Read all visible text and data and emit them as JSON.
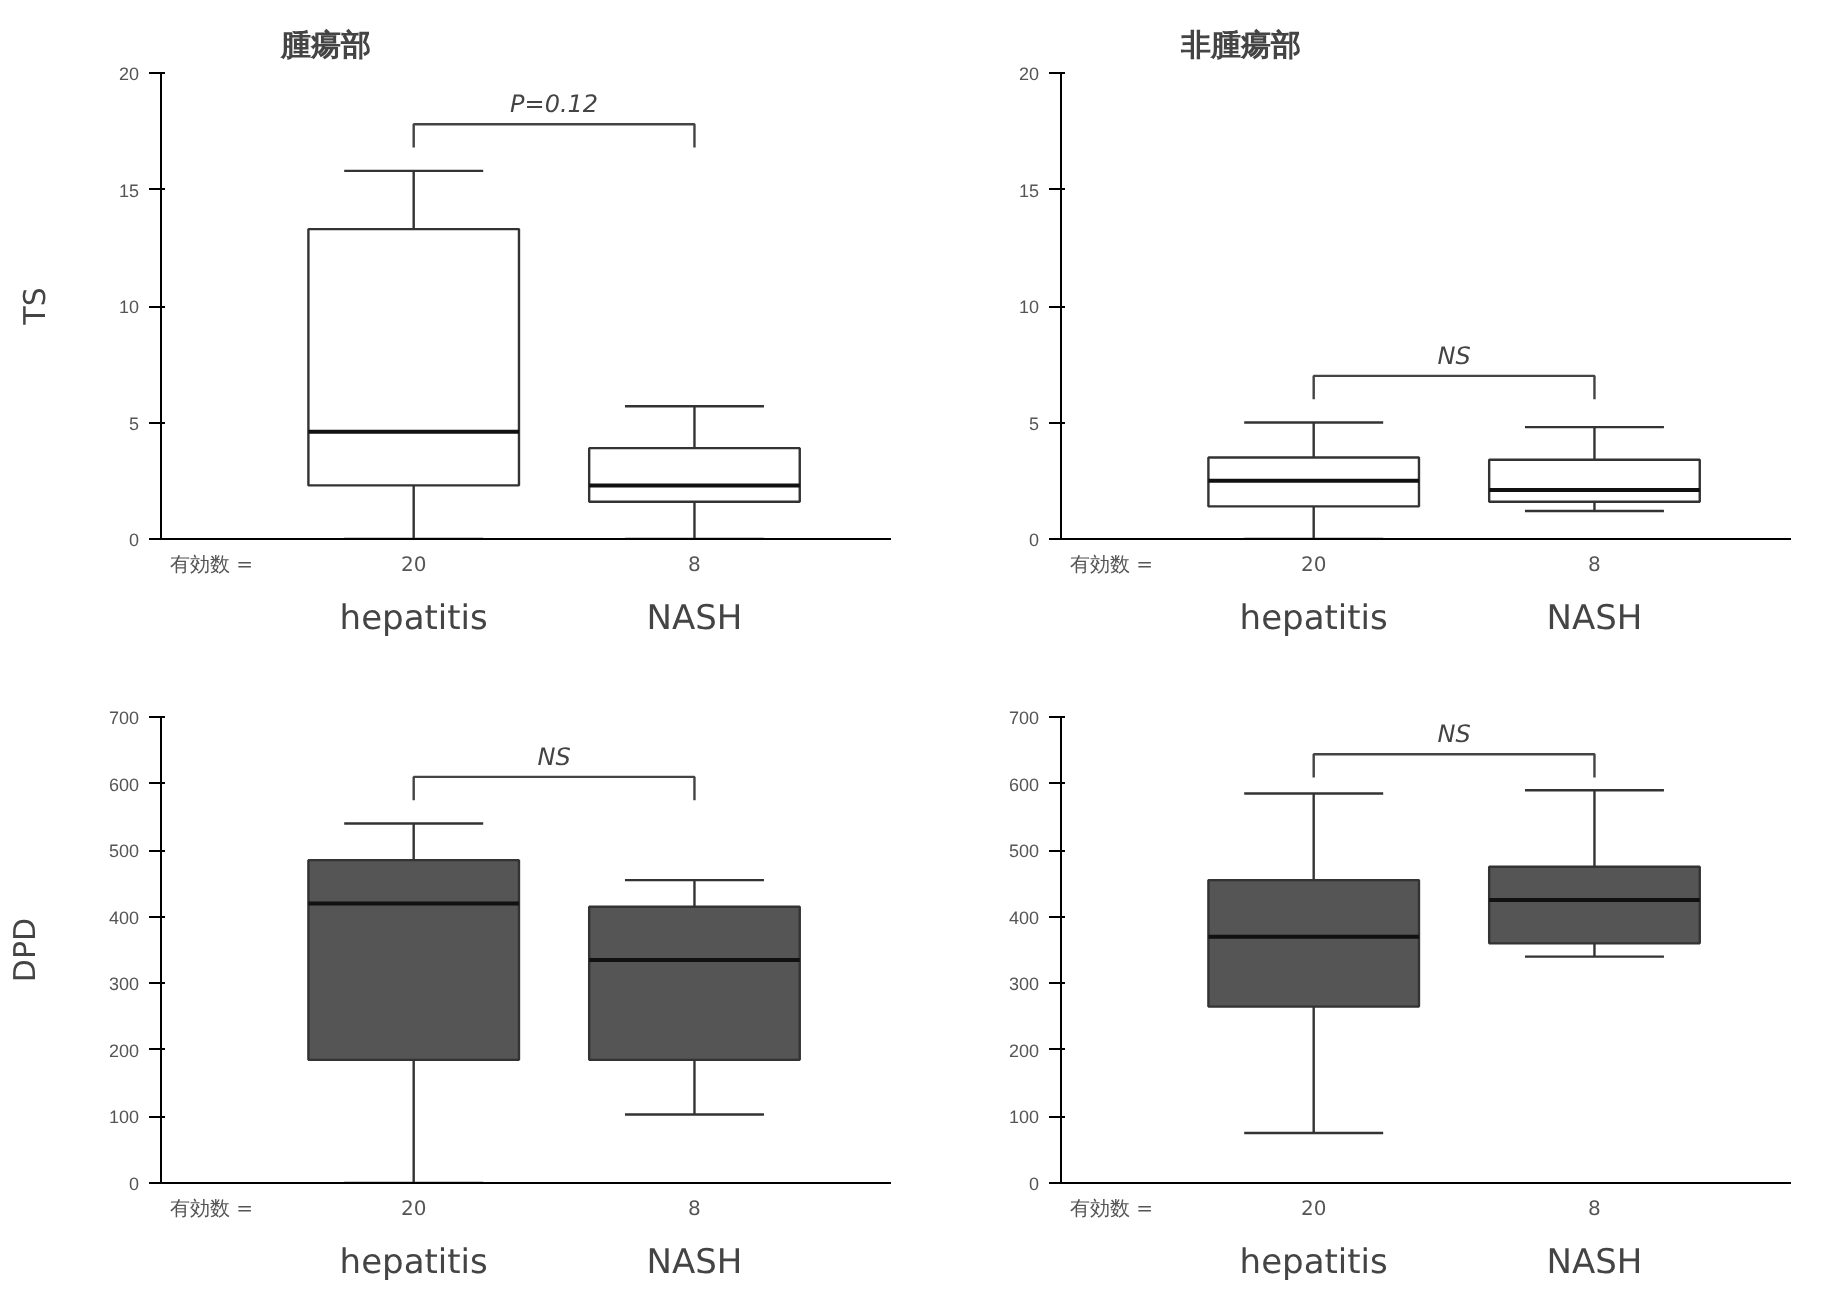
{
  "chart_data": [
    {
      "type": "box",
      "title": "腫瘍部",
      "ylabel": "TS",
      "categories": [
        "hepatitis",
        "NASH"
      ],
      "ylim": [
        0,
        20
      ],
      "yticks": [
        0,
        5,
        10,
        15,
        20
      ],
      "grid": false,
      "series": [
        {
          "color": "#ffffff",
          "boxes": [
            {
              "low": 0,
              "q1": 2.3,
              "median": 4.6,
              "q3": 13.3,
              "high": 15.8
            },
            {
              "low": 0,
              "q1": 1.6,
              "median": 2.3,
              "q3": 3.9,
              "high": 5.7
            }
          ]
        }
      ],
      "annotations": [
        "P=0.12",
        "有効数 =",
        "20",
        "8"
      ]
    },
    {
      "type": "box",
      "title": "非腫瘍部",
      "categories": [
        "hepatitis",
        "NASH"
      ],
      "ylim": [
        0,
        20
      ],
      "yticks": [
        0,
        5,
        10,
        15,
        20
      ],
      "grid": false,
      "series": [
        {
          "color": "#ffffff",
          "boxes": [
            {
              "low": 0,
              "q1": 1.4,
              "median": 2.5,
              "q3": 3.5,
              "high": 5.0
            },
            {
              "low": 1.2,
              "q1": 1.6,
              "median": 2.1,
              "q3": 3.4,
              "high": 4.8
            }
          ]
        }
      ],
      "annotations": [
        "NS",
        "有効数 =",
        "20",
        "8"
      ]
    },
    {
      "type": "box",
      "ylabel": "DPD",
      "categories": [
        "hepatitis",
        "NASH"
      ],
      "ylim": [
        0,
        700
      ],
      "yticks": [
        0,
        100,
        200,
        300,
        400,
        500,
        600,
        700
      ],
      "grid": false,
      "series": [
        {
          "color": "#555555",
          "boxes": [
            {
              "low": 0,
              "q1": 185,
              "median": 420,
              "q3": 485,
              "high": 540
            },
            {
              "low": 103,
              "q1": 185,
              "median": 335,
              "q3": 415,
              "high": 455
            }
          ]
        }
      ],
      "annotations": [
        "NS",
        "有効数 =",
        "20",
        "8"
      ]
    },
    {
      "type": "box",
      "categories": [
        "hepatitis",
        "NASH"
      ],
      "ylim": [
        0,
        700
      ],
      "yticks": [
        0,
        100,
        200,
        300,
        400,
        500,
        600,
        700
      ],
      "grid": false,
      "series": [
        {
          "color": "#555555",
          "boxes": [
            {
              "low": 75,
              "q1": 265,
              "median": 370,
              "q3": 455,
              "high": 585
            },
            {
              "low": 340,
              "q1": 360,
              "median": 425,
              "q3": 475,
              "high": 590
            }
          ]
        }
      ],
      "annotations": [
        "NS",
        "有効数 =",
        "20",
        "8"
      ]
    }
  ]
}
